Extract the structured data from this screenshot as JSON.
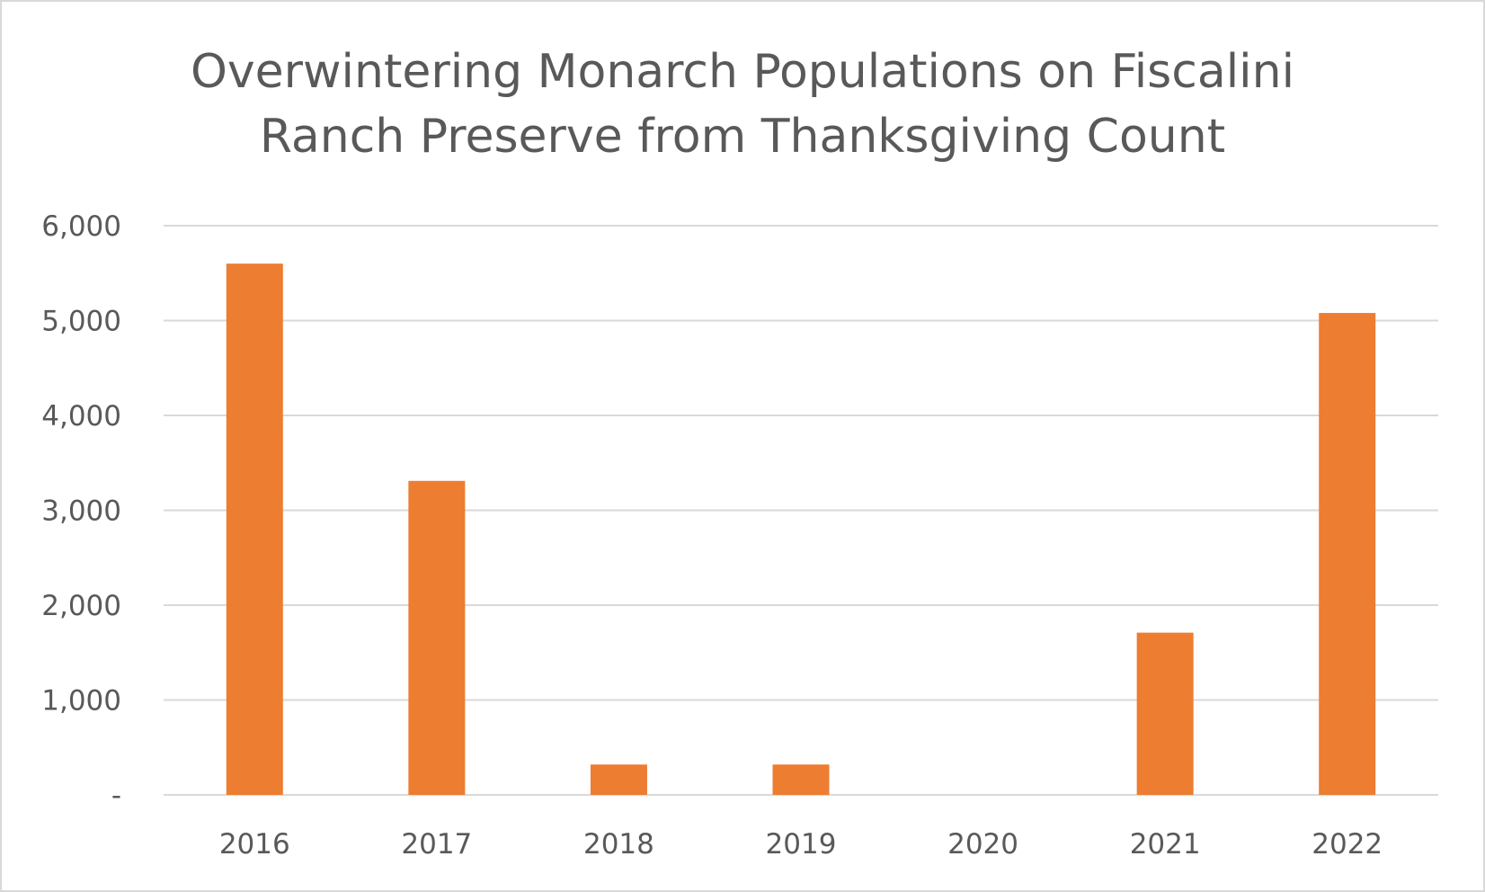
{
  "chart_data": {
    "type": "bar",
    "title": "Overwintering Monarch Populations on Fiscalini Ranch Preserve from Thanksgiving Count",
    "title_lines": [
      "Overwintering Monarch Populations on Fiscalini",
      "Ranch Preserve from Thanksgiving Count"
    ],
    "categories": [
      "2016",
      "2017",
      "2018",
      "2019",
      "2020",
      "2021",
      "2022"
    ],
    "series": [
      {
        "values": [
          5600,
          3310,
          320,
          320,
          0,
          1710,
          5080
        ],
        "color": "#ED7D31"
      }
    ],
    "ylim": [
      0,
      6000
    ],
    "yticks": [
      0,
      1000,
      2000,
      3000,
      4000,
      5000,
      6000
    ],
    "ytick_labels": [
      "-",
      "1,000",
      "2,000",
      "3,000",
      "4,000",
      "5,000",
      "6,000"
    ],
    "xlabel": "",
    "ylabel": "",
    "grid": true,
    "legend": "none",
    "colors": {
      "bar": "#ED7D31",
      "grid": "#D9D9D9",
      "text": "#595959",
      "border": "#D9D9D9"
    }
  }
}
